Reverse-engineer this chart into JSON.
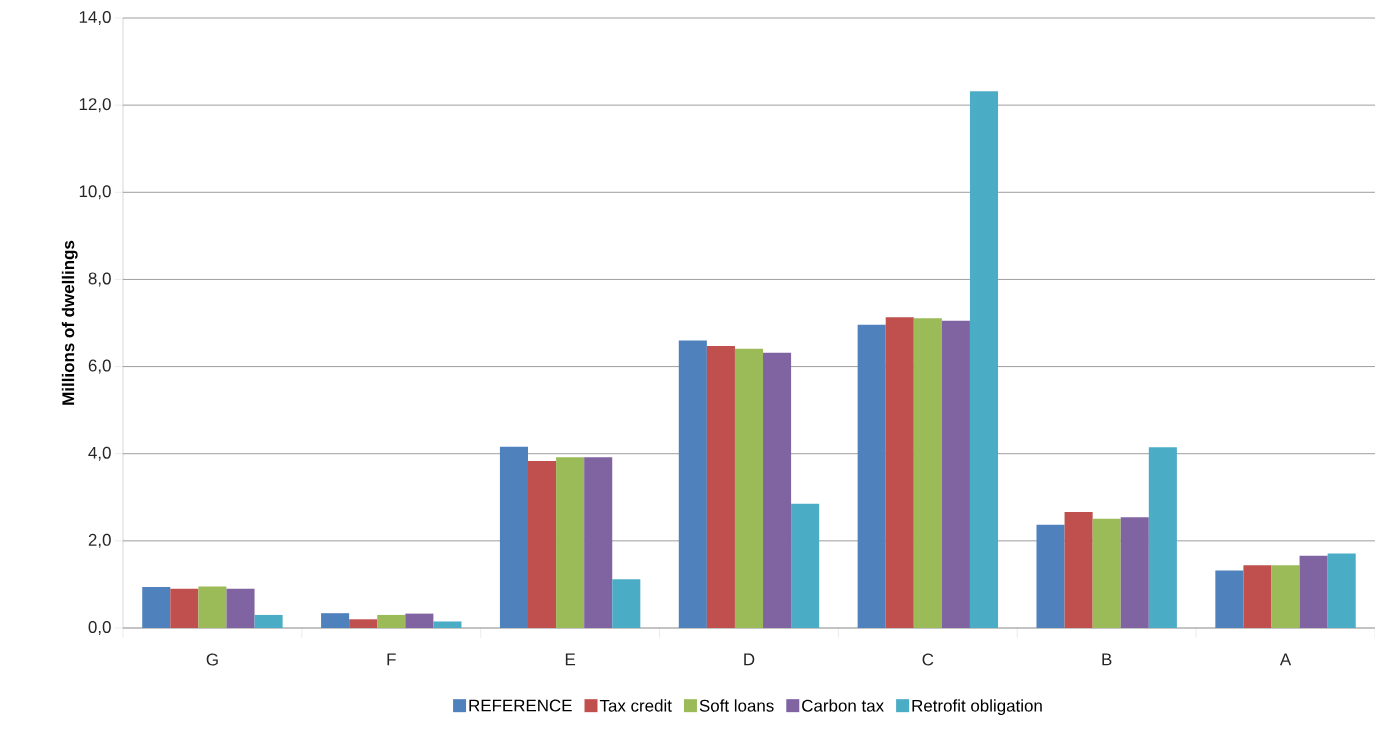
{
  "chart_data": {
    "type": "bar",
    "ylabel": "Millions of dwellings",
    "categories": [
      "G",
      "F",
      "E",
      "D",
      "C",
      "B",
      "A"
    ],
    "series": [
      {
        "name": "REFERENCE",
        "color": "#4f81bd",
        "values": [
          0.94,
          0.34,
          4.16,
          6.6,
          6.96,
          2.37,
          1.32
        ]
      },
      {
        "name": "Tax credit",
        "color": "#c0504d",
        "values": [
          0.9,
          0.2,
          3.83,
          6.47,
          7.13,
          2.66,
          1.44
        ]
      },
      {
        "name": "Soft loans",
        "color": "#9bbb59",
        "values": [
          0.95,
          0.3,
          3.92,
          6.41,
          7.11,
          2.51,
          1.44
        ]
      },
      {
        "name": "Carbon tax",
        "color": "#8064a2",
        "values": [
          0.9,
          0.33,
          3.92,
          6.32,
          7.05,
          2.54,
          1.66
        ]
      },
      {
        "name": "Retrofit obligation",
        "color": "#4bacc6",
        "values": [
          0.3,
          0.15,
          1.12,
          2.85,
          12.32,
          4.15,
          1.71
        ]
      }
    ],
    "ylim": [
      0,
      14
    ],
    "yticks": [
      {
        "value": 0,
        "label": "0,0"
      },
      {
        "value": 2,
        "label": "2,0"
      },
      {
        "value": 4,
        "label": "4,0"
      },
      {
        "value": 6,
        "label": "6,0"
      },
      {
        "value": 8,
        "label": "8,0"
      },
      {
        "value": 10,
        "label": "10,0"
      },
      {
        "value": 12,
        "label": "12,0"
      },
      {
        "value": 14,
        "label": "14,0"
      }
    ],
    "grid": "y",
    "legend": "bottom"
  }
}
